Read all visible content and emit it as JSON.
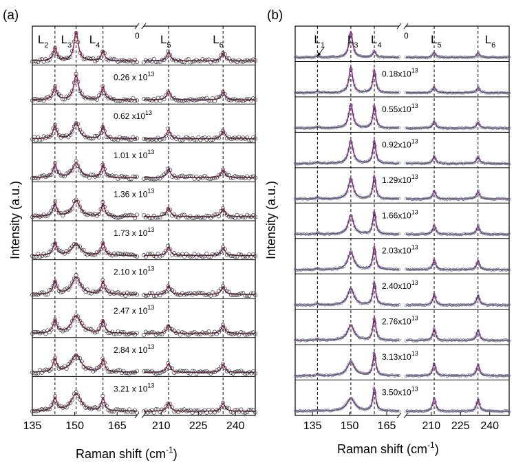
{
  "chart_data": [
    {
      "panel_label": "(a)",
      "type": "line",
      "xlabel": "Raman shift (cm",
      "xlabel_sup": "-1",
      "xlabel_tail": ")",
      "ylabel": "Intensity (a.u.)",
      "x_segments": [
        {
          "range": [
            135,
            172
          ],
          "ticks": [
            135,
            150,
            165
          ]
        },
        {
          "range": [
            203,
            248
          ],
          "ticks": [
            210,
            225,
            240
          ]
        }
      ],
      "peaks": [
        {
          "label": "L",
          "sub": "2",
          "position": 143
        },
        {
          "label": "L",
          "sub": "3",
          "position": 150.5
        },
        {
          "label": "L",
          "sub": "4",
          "position": 160
        },
        {
          "label": "L",
          "sub": "5",
          "position": 213
        },
        {
          "label": "L",
          "sub": "6",
          "position": 235
        }
      ],
      "dashed_lines": [
        143,
        150.5,
        160,
        213,
        235
      ],
      "spectra": [
        {
          "label": "0",
          "sup": "",
          "main_peak_height": 1.0,
          "main_peak_width": 1.0
        },
        {
          "label": "0.26 x 10",
          "sup": "13",
          "main_peak_height": 0.85,
          "main_peak_width": 1.1
        },
        {
          "label": "0.62 x10",
          "sup": "13",
          "main_peak_height": 0.55,
          "main_peak_width": 1.4
        },
        {
          "label": "1.01 x 10",
          "sup": "13",
          "main_peak_height": 0.5,
          "main_peak_width": 1.7
        },
        {
          "label": "1.36 x 10",
          "sup": "13",
          "main_peak_height": 0.55,
          "main_peak_width": 1.8
        },
        {
          "label": "1.73 x 10",
          "sup": "13",
          "main_peak_height": 0.4,
          "main_peak_width": 2.0
        },
        {
          "label": "2.10 x 10",
          "sup": "13",
          "main_peak_height": 0.6,
          "main_peak_width": 2.0
        },
        {
          "label": "2.47 x 10",
          "sup": "13",
          "main_peak_height": 0.6,
          "main_peak_width": 2.2
        },
        {
          "label": "2.84 x 10",
          "sup": "13",
          "main_peak_height": 0.6,
          "main_peak_width": 2.3
        },
        {
          "label": "3.21 x 10",
          "sup": "13",
          "main_peak_height": 0.6,
          "main_peak_width": 2.3
        }
      ],
      "fit_color": "#e02020",
      "data_color": "#2030c0"
    },
    {
      "panel_label": "(b)",
      "type": "line",
      "xlabel": "Raman shift (cm",
      "xlabel_sup": "-1",
      "xlabel_tail": ")",
      "ylabel": "Intensity (a.u.)",
      "x_segments": [
        {
          "range": [
            128,
            170
          ],
          "ticks": [
            135,
            150,
            165
          ]
        },
        {
          "range": [
            197,
            250
          ],
          "ticks": [
            210,
            225,
            240
          ]
        }
      ],
      "peaks": [
        {
          "label": "L",
          "sub": "1",
          "position": 137
        },
        {
          "label": "L",
          "sub": "3",
          "position": 150.5
        },
        {
          "label": "L",
          "sub": "4",
          "position": 160
        },
        {
          "label": "L",
          "sub": "5",
          "position": 211.5
        },
        {
          "label": "L",
          "sub": "6",
          "position": 234
        }
      ],
      "dashed_lines": [
        137,
        150.5,
        160,
        211.5,
        234
      ],
      "spectra": [
        {
          "label": "0",
          "sup": "",
          "main_peak_height": 1.0,
          "main_peak_width": 1.0
        },
        {
          "label": "0.18x10",
          "sup": "13",
          "main_peak_height": 1.0,
          "main_peak_width": 1.0
        },
        {
          "label": "0.55x10",
          "sup": "13",
          "main_peak_height": 0.95,
          "main_peak_width": 1.1
        },
        {
          "label": "0.92x10",
          "sup": "13",
          "main_peak_height": 0.9,
          "main_peak_width": 1.2
        },
        {
          "label": "1.29x10",
          "sup": "13",
          "main_peak_height": 0.8,
          "main_peak_width": 1.3
        },
        {
          "label": "1.66x10",
          "sup": "13",
          "main_peak_height": 0.75,
          "main_peak_width": 1.4
        },
        {
          "label": "2.03x10",
          "sup": "13",
          "main_peak_height": 0.7,
          "main_peak_width": 1.6
        },
        {
          "label": "2.40x10",
          "sup": "13",
          "main_peak_height": 0.65,
          "main_peak_width": 1.7
        },
        {
          "label": "2.76x10",
          "sup": "13",
          "main_peak_height": 0.6,
          "main_peak_width": 1.8
        },
        {
          "label": "3.13x10",
          "sup": "13",
          "main_peak_height": 0.55,
          "main_peak_width": 2.0
        },
        {
          "label": "3.50x10",
          "sup": "13",
          "main_peak_height": 0.5,
          "main_peak_width": 2.2
        }
      ],
      "fit_color": "#c01050",
      "data_color": "#2030c0"
    }
  ]
}
